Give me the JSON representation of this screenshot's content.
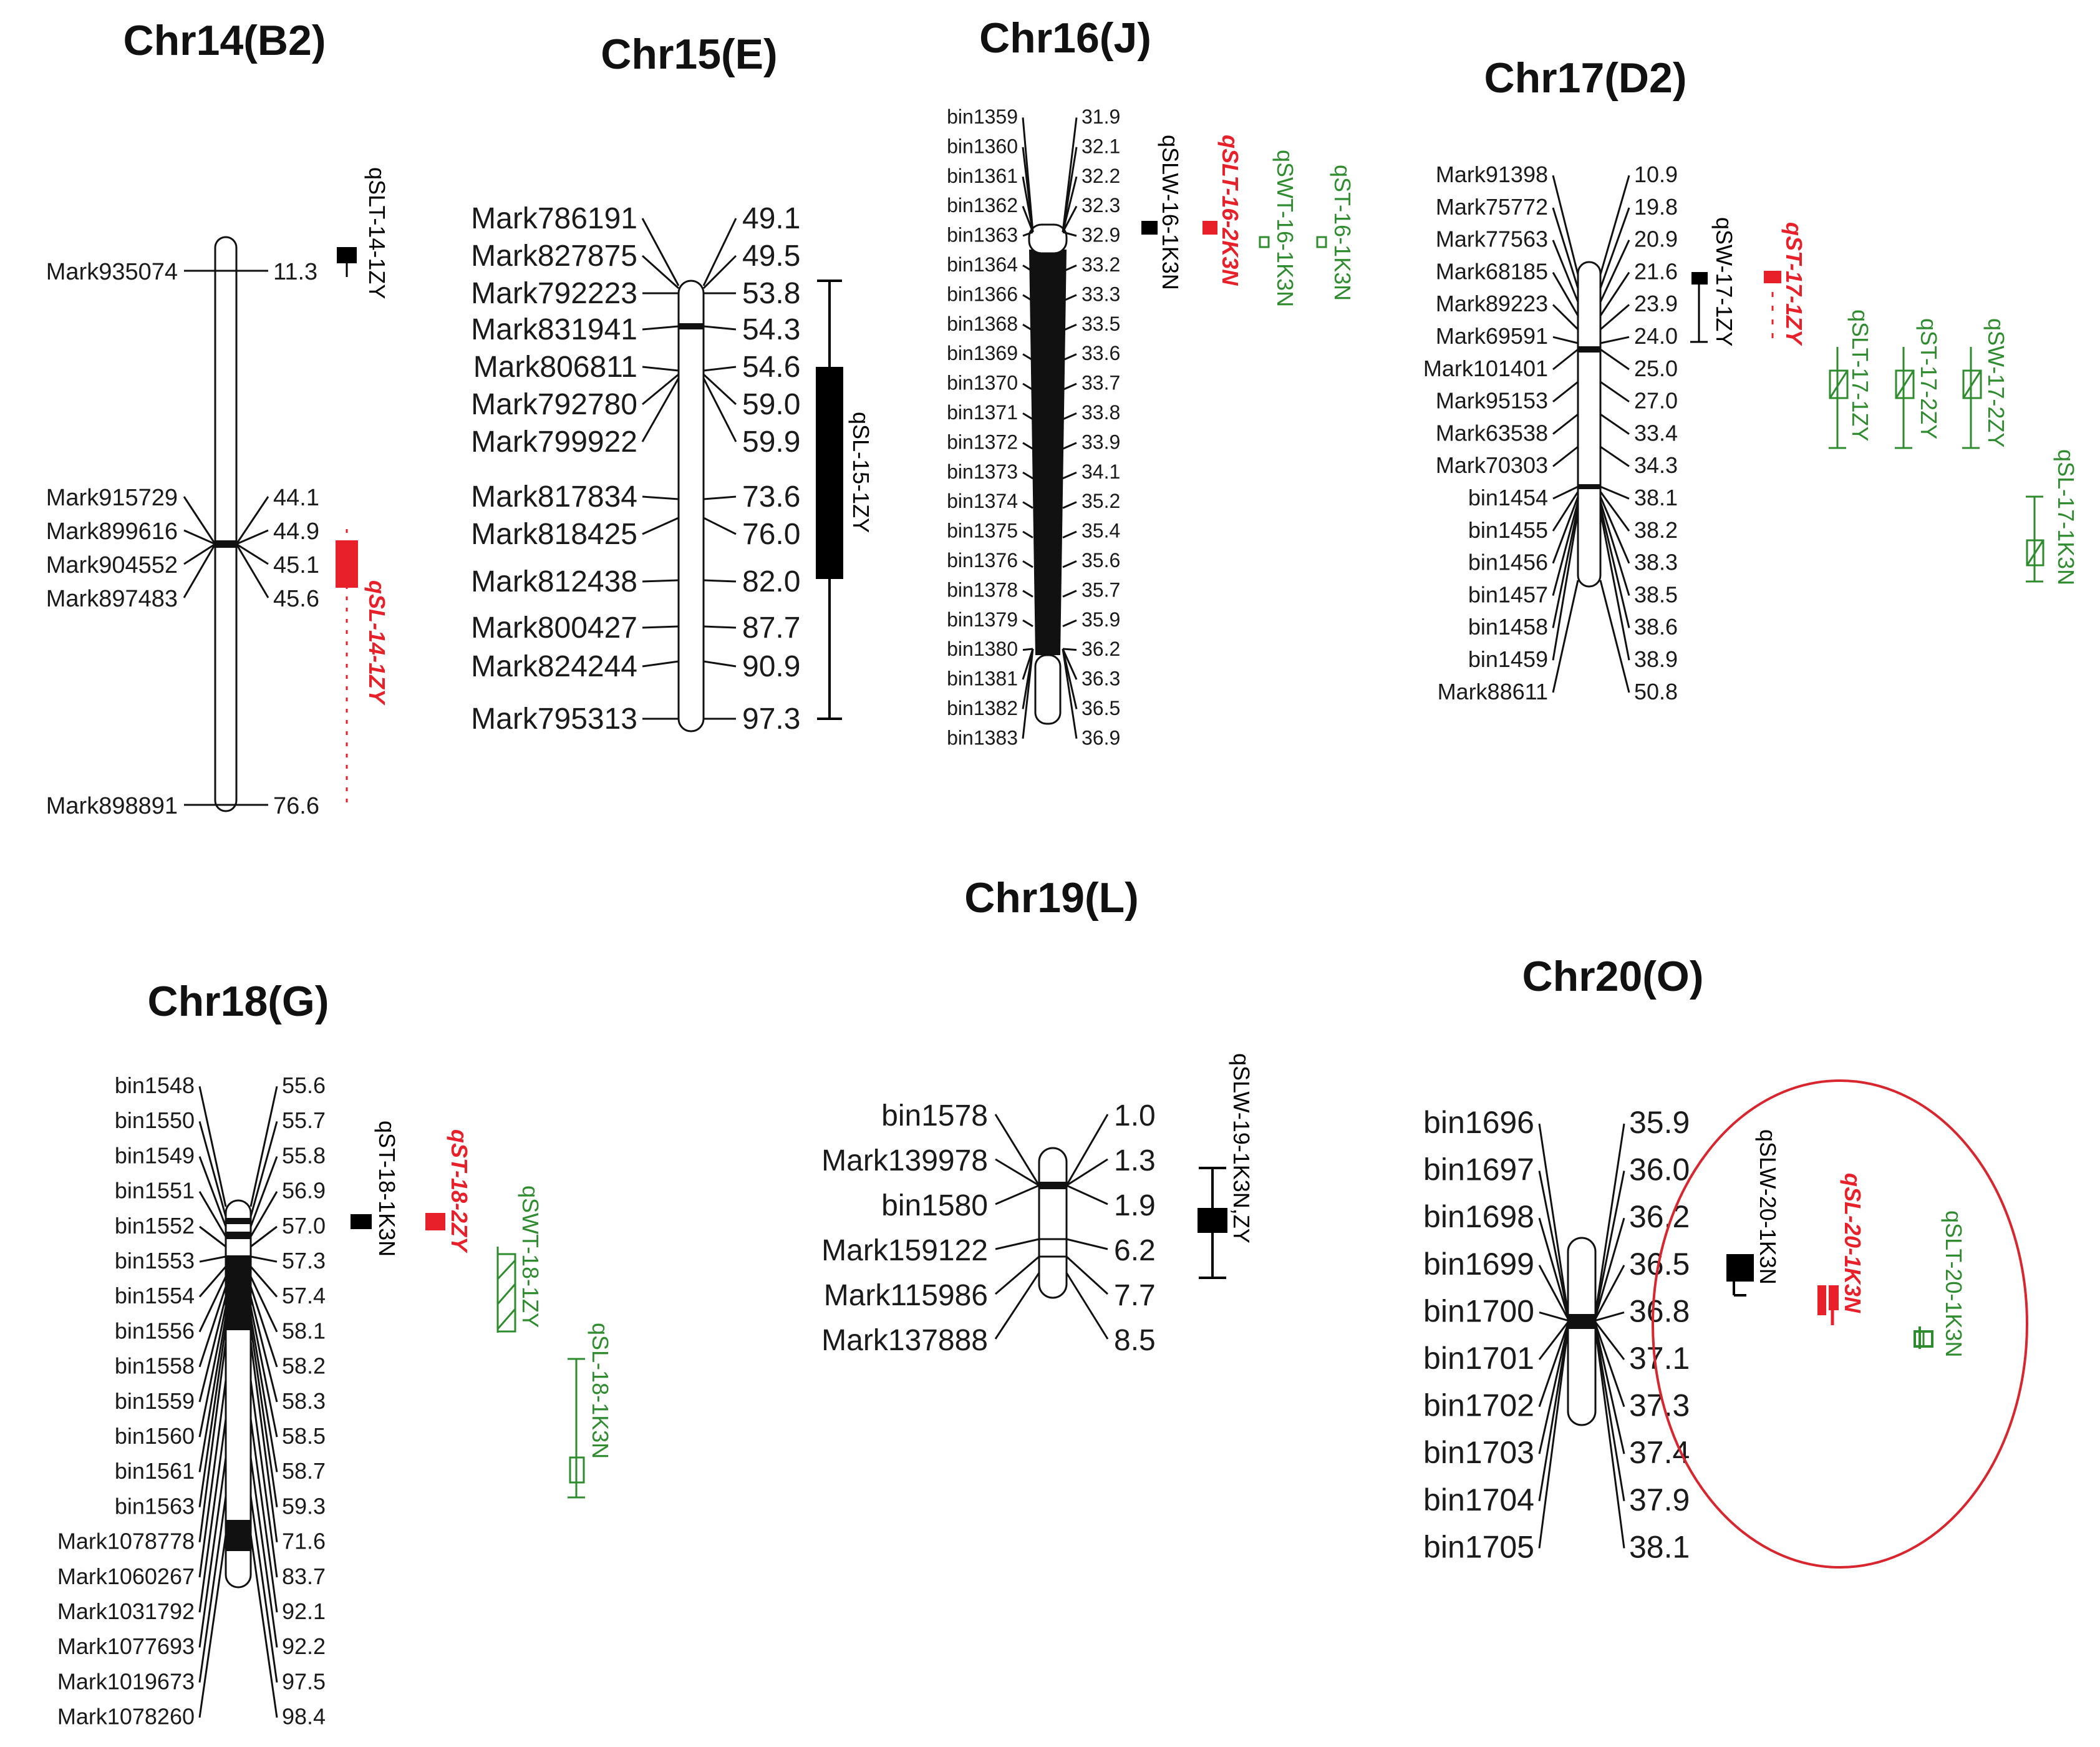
{
  "colors": {
    "black_qtl": "#000000",
    "red_qtl": "#e8202a",
    "green_qtl": "#2e8b2e",
    "highlight_ellipse": "#d9262e"
  },
  "chromosomes": [
    {
      "id": "chr14",
      "title": "Chr14(B2)",
      "markers": [
        {
          "name": "Mark935074",
          "pos": "11.3"
        },
        {
          "name": "Mark915729",
          "pos": "44.1"
        },
        {
          "name": "Mark899616",
          "pos": "44.9"
        },
        {
          "name": "Mark904552",
          "pos": "45.1"
        },
        {
          "name": "Mark897483",
          "pos": "45.6"
        },
        {
          "name": "Mark898891",
          "pos": "76.6"
        }
      ],
      "qtls": [
        {
          "label": "qSLT-14-1ZY",
          "color": "black",
          "fill": "solid"
        },
        {
          "label": "qSL-14-1ZY",
          "color": "red",
          "fill": "solid",
          "style": "bold-italic"
        }
      ]
    },
    {
      "id": "chr15",
      "title": "Chr15(E)",
      "markers": [
        {
          "name": "Mark786191",
          "pos": "49.1"
        },
        {
          "name": "Mark827875",
          "pos": "49.5"
        },
        {
          "name": "Mark792223",
          "pos": "53.8"
        },
        {
          "name": "Mark831941",
          "pos": "54.3"
        },
        {
          "name": "Mark806811",
          "pos": "54.6"
        },
        {
          "name": "Mark792780",
          "pos": "59.0"
        },
        {
          "name": "Mark799922",
          "pos": "59.9"
        },
        {
          "name": "Mark817834",
          "pos": "73.6"
        },
        {
          "name": "Mark818425",
          "pos": "76.0"
        },
        {
          "name": "Mark812438",
          "pos": "82.0"
        },
        {
          "name": "Mark800427",
          "pos": "87.7"
        },
        {
          "name": "Mark824244",
          "pos": "90.9"
        },
        {
          "name": "Mark795313",
          "pos": "97.3"
        }
      ],
      "qtls": [
        {
          "label": "qSL-15-1ZY",
          "color": "black",
          "fill": "solid"
        }
      ]
    },
    {
      "id": "chr16",
      "title": "Chr16(J)",
      "markers": [
        {
          "name": "bin1359",
          "pos": "31.9"
        },
        {
          "name": "bin1360",
          "pos": "32.1"
        },
        {
          "name": "bin1361",
          "pos": "32.2"
        },
        {
          "name": "bin1362",
          "pos": "32.3"
        },
        {
          "name": "bin1363",
          "pos": "32.9"
        },
        {
          "name": "bin1364",
          "pos": "33.2"
        },
        {
          "name": "bin1366",
          "pos": "33.3"
        },
        {
          "name": "bin1368",
          "pos": "33.5"
        },
        {
          "name": "bin1369",
          "pos": "33.6"
        },
        {
          "name": "bin1370",
          "pos": "33.7"
        },
        {
          "name": "bin1371",
          "pos": "33.8"
        },
        {
          "name": "bin1372",
          "pos": "33.9"
        },
        {
          "name": "bin1373",
          "pos": "34.1"
        },
        {
          "name": "bin1374",
          "pos": "35.2"
        },
        {
          "name": "bin1375",
          "pos": "35.4"
        },
        {
          "name": "bin1376",
          "pos": "35.6"
        },
        {
          "name": "bin1378",
          "pos": "35.7"
        },
        {
          "name": "bin1379",
          "pos": "35.9"
        },
        {
          "name": "bin1380",
          "pos": "36.2"
        },
        {
          "name": "bin1381",
          "pos": "36.3"
        },
        {
          "name": "bin1382",
          "pos": "36.5"
        },
        {
          "name": "bin1383",
          "pos": "36.9"
        }
      ],
      "qtls": [
        {
          "label": "qSLW-16-1K3N",
          "color": "black",
          "fill": "solid"
        },
        {
          "label": "qSLT-16-2K3N",
          "color": "red",
          "fill": "solid",
          "style": "bold-italic"
        },
        {
          "label": "qSWT-16-1K3N",
          "color": "green",
          "fill": "open"
        },
        {
          "label": "qST-16-1K3N",
          "color": "green",
          "fill": "open"
        }
      ]
    },
    {
      "id": "chr17",
      "title": "Chr17(D2)",
      "markers": [
        {
          "name": "Mark91398",
          "pos": "10.9"
        },
        {
          "name": "Mark75772",
          "pos": "19.8"
        },
        {
          "name": "Mark77563",
          "pos": "20.9"
        },
        {
          "name": "Mark68185",
          "pos": "21.6"
        },
        {
          "name": "Mark89223",
          "pos": "23.9"
        },
        {
          "name": "Mark69591",
          "pos": "24.0"
        },
        {
          "name": "Mark101401",
          "pos": "25.0"
        },
        {
          "name": "Mark95153",
          "pos": "27.0"
        },
        {
          "name": "Mark63538",
          "pos": "33.4"
        },
        {
          "name": "Mark70303",
          "pos": "34.3"
        },
        {
          "name": "bin1454",
          "pos": "38.1"
        },
        {
          "name": "bin1455",
          "pos": "38.2"
        },
        {
          "name": "bin1456",
          "pos": "38.3"
        },
        {
          "name": "bin1457",
          "pos": "38.5"
        },
        {
          "name": "bin1458",
          "pos": "38.6"
        },
        {
          "name": "bin1459",
          "pos": "38.9"
        },
        {
          "name": "Mark88611",
          "pos": "50.8"
        }
      ],
      "qtls": [
        {
          "label": "qSW-17-1ZY",
          "color": "black",
          "fill": "solid"
        },
        {
          "label": "qST-17-1ZY",
          "color": "red",
          "fill": "solid",
          "style": "bold-italic"
        },
        {
          "label": "qSLT-17-1ZY",
          "color": "green",
          "fill": "open"
        },
        {
          "label": "qST-17-2ZY",
          "color": "green",
          "fill": "open"
        },
        {
          "label": "qSW-17-2ZY",
          "color": "green",
          "fill": "open"
        },
        {
          "label": "qSL-17-1K3N",
          "color": "green",
          "fill": "open"
        }
      ]
    },
    {
      "id": "chr18",
      "title": "Chr18(G)",
      "markers": [
        {
          "name": "bin1548",
          "pos": "55.6"
        },
        {
          "name": "bin1550",
          "pos": "55.7"
        },
        {
          "name": "bin1549",
          "pos": "55.8"
        },
        {
          "name": "bin1551",
          "pos": "56.9"
        },
        {
          "name": "bin1552",
          "pos": "57.0"
        },
        {
          "name": "bin1553",
          "pos": "57.3"
        },
        {
          "name": "bin1554",
          "pos": "57.4"
        },
        {
          "name": "bin1556",
          "pos": "58.1"
        },
        {
          "name": "bin1558",
          "pos": "58.2"
        },
        {
          "name": "bin1559",
          "pos": "58.3"
        },
        {
          "name": "bin1560",
          "pos": "58.5"
        },
        {
          "name": "bin1561",
          "pos": "58.7"
        },
        {
          "name": "bin1563",
          "pos": "59.3"
        },
        {
          "name": "Mark1078778",
          "pos": "71.6"
        },
        {
          "name": "Mark1060267",
          "pos": "83.7"
        },
        {
          "name": "Mark1031792",
          "pos": "92.1"
        },
        {
          "name": "Mark1077693",
          "pos": "92.2"
        },
        {
          "name": "Mark1019673",
          "pos": "97.5"
        },
        {
          "name": "Mark1078260",
          "pos": "98.4"
        }
      ],
      "qtls": [
        {
          "label": "qST-18-1K3N",
          "color": "black",
          "fill": "solid"
        },
        {
          "label": "qST-18-2ZY",
          "color": "red",
          "fill": "solid",
          "style": "bold-italic"
        },
        {
          "label": "qSWT-18-1ZY",
          "color": "green",
          "fill": "hatched"
        },
        {
          "label": "qSL-18-1K3N",
          "color": "green",
          "fill": "open"
        }
      ]
    },
    {
      "id": "chr19",
      "title": "Chr19(L)",
      "markers": [
        {
          "name": "bin1578",
          "pos": "1.0"
        },
        {
          "name": "Mark139978",
          "pos": "1.3"
        },
        {
          "name": "bin1580",
          "pos": "1.9"
        },
        {
          "name": "Mark159122",
          "pos": "6.2"
        },
        {
          "name": "Mark115986",
          "pos": "7.7"
        },
        {
          "name": "Mark137888",
          "pos": "8.5"
        }
      ],
      "qtls": [
        {
          "label": "qSLW-19-1K3N,ZY",
          "color": "black",
          "fill": "solid"
        }
      ]
    },
    {
      "id": "chr20",
      "title": "Chr20(O)",
      "markers": [
        {
          "name": "bin1696",
          "pos": "35.9"
        },
        {
          "name": "bin1697",
          "pos": "36.0"
        },
        {
          "name": "bin1698",
          "pos": "36.2"
        },
        {
          "name": "bin1699",
          "pos": "36.5"
        },
        {
          "name": "bin1700",
          "pos": "36.8"
        },
        {
          "name": "bin1701",
          "pos": "37.1"
        },
        {
          "name": "bin1702",
          "pos": "37.3"
        },
        {
          "name": "bin1703",
          "pos": "37.4"
        },
        {
          "name": "bin1704",
          "pos": "37.9"
        },
        {
          "name": "bin1705",
          "pos": "38.1"
        }
      ],
      "qtls": [
        {
          "label": "qSLW-20-1K3N",
          "color": "black",
          "fill": "solid"
        },
        {
          "label": "qSL-20-1K3N",
          "color": "red",
          "fill": "solid",
          "style": "bold-italic"
        },
        {
          "label": "qSLT-20-1K3N",
          "color": "green",
          "fill": "open"
        }
      ],
      "highlighted": true
    }
  ]
}
